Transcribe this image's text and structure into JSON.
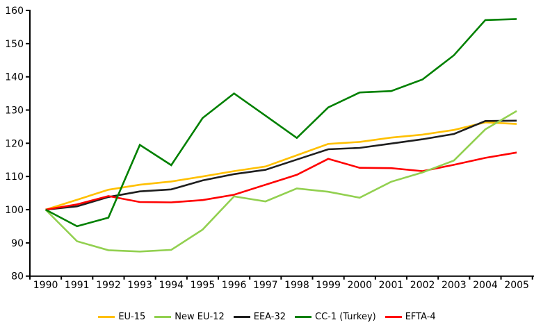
{
  "chart_data": {
    "type": "line",
    "title": "",
    "xlabel": "",
    "ylabel": "",
    "grid": false,
    "legend_position": "bottom",
    "ylim": [
      80,
      160
    ],
    "yticks": [
      80,
      90,
      100,
      110,
      120,
      130,
      140,
      150,
      160
    ],
    "categories": [
      "1990",
      "1991",
      "1992",
      "1993",
      "1994",
      "1995",
      "1996",
      "1997",
      "1998",
      "1999",
      "2000",
      "2001",
      "2002",
      "2003",
      "2004",
      "2005"
    ],
    "series": [
      {
        "name": "EU-15",
        "color": "#FFC000",
        "values": [
          100,
          103.0,
          106.0,
          107.5,
          108.5,
          110.0,
          111.6,
          113.0,
          116.4,
          119.8,
          120.4,
          121.7,
          122.6,
          124.0,
          126.3,
          125.8
        ]
      },
      {
        "name": "New EU-12",
        "color": "#92D050",
        "values": [
          100,
          90.5,
          87.8,
          87.4,
          87.9,
          94.0,
          104.0,
          102.5,
          106.4,
          105.4,
          103.6,
          108.4,
          111.2,
          114.8,
          124.2,
          129.7
        ]
      },
      {
        "name": "EEA-32",
        "color": "#1F1F1F",
        "values": [
          100,
          101.0,
          103.8,
          105.5,
          106.1,
          108.8,
          110.7,
          112.0,
          115.1,
          118.2,
          118.6,
          119.9,
          121.2,
          122.8,
          126.7,
          126.8
        ]
      },
      {
        "name": "CC-1 (Turkey)",
        "color": "#008000",
        "values": [
          100,
          95.0,
          97.6,
          119.5,
          113.4,
          127.6,
          135.0,
          128.3,
          121.6,
          130.8,
          135.3,
          135.7,
          139.2,
          146.5,
          157.1,
          157.4
        ]
      },
      {
        "name": "EFTA-4",
        "color": "#FF0000",
        "values": [
          100,
          101.6,
          104.1,
          102.3,
          102.2,
          102.9,
          104.5,
          107.5,
          110.5,
          115.3,
          112.6,
          112.5,
          111.6,
          113.5,
          115.6,
          117.2
        ]
      }
    ],
    "draw_order": [
      0,
      2,
      4,
      1,
      3
    ]
  }
}
